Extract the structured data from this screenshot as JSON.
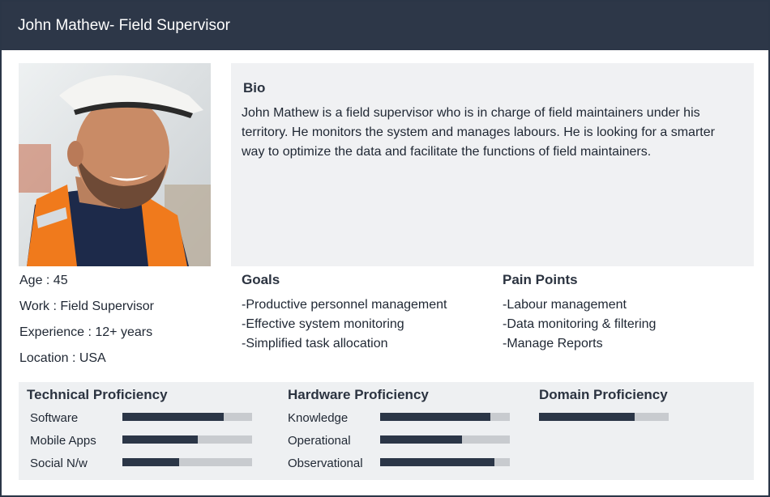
{
  "header": {
    "title": "John Mathew- Field Supervisor"
  },
  "photo": {
    "description_icon": "person-photo"
  },
  "bio": {
    "title": "Bio",
    "text": "John Mathew is a field supervisor who is in charge of field maintainers under his territory. He monitors the system and manages labours. He is looking for a smarter way to optimize the data and facilitate the functions of field maintainers."
  },
  "facts": [
    "Age : 45",
    "Work : Field Supervisor",
    "Experience : 12+ years",
    "Location : USA"
  ],
  "goals": {
    "title": "Goals",
    "items": [
      "-Productive personnel management",
      "-Effective system monitoring",
      "-Simplified task allocation"
    ]
  },
  "pain_points": {
    "title": "Pain Points",
    "items": [
      "-Labour management",
      "-Data monitoring & filtering",
      "-Manage Reports"
    ]
  },
  "proficiency": [
    {
      "title": "Technical Proficiency",
      "skills": [
        {
          "label": "Software",
          "level": 0.78
        },
        {
          "label": "Mobile Apps",
          "level": 0.58
        },
        {
          "label": "Social N/w",
          "level": 0.44
        }
      ]
    },
    {
      "title": "Hardware Proficiency",
      "skills": [
        {
          "label": "Knowledge",
          "level": 0.85
        },
        {
          "label": "Operational",
          "level": 0.63
        },
        {
          "label": "Observational",
          "level": 0.88
        }
      ]
    },
    {
      "title": "Domain Proficiency",
      "skills": [
        {
          "label": "",
          "level": 0.74
        }
      ]
    }
  ],
  "colors": {
    "header": "#2d3748",
    "bar_fill": "#2b3647",
    "bar_track": "#c8cbcf",
    "panel": "#f0f1f3"
  }
}
